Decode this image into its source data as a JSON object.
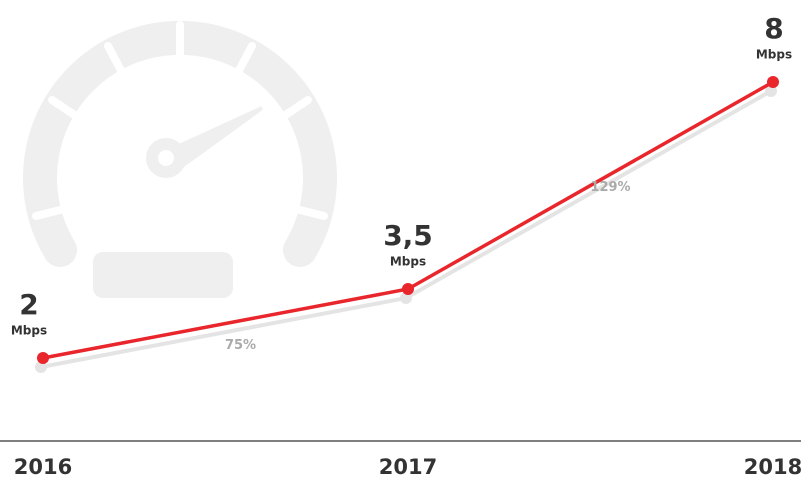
{
  "chart_data": {
    "type": "line",
    "categories": [
      "2016",
      "2017",
      "2018"
    ],
    "series": [
      {
        "color": "#e8262b",
        "values": [
          2,
          3.5,
          8
        ],
        "value_labels": [
          "2",
          "3,5",
          "8"
        ]
      }
    ],
    "unit": "Mbps",
    "annotations": [
      "75%",
      "129%"
    ],
    "ylim": [
      0,
      9
    ]
  }
}
